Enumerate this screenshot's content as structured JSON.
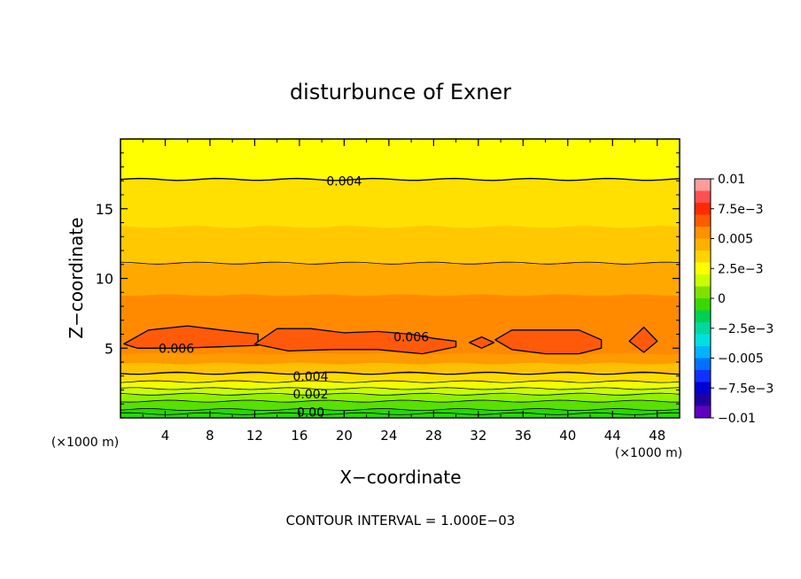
{
  "chart_data": {
    "type": "heatmap",
    "title": "disturbunce of Exner",
    "xlabel": "X−coordinate",
    "ylabel": "Z−coordinate",
    "x_unit": "(×1000 m)",
    "y_unit": "(×1000 m)",
    "xlim": [
      0,
      50
    ],
    "ylim": [
      0,
      20
    ],
    "x_ticks": [
      4,
      8,
      12,
      16,
      20,
      24,
      28,
      32,
      36,
      40,
      44,
      48
    ],
    "y_ticks": [
      5,
      10,
      15
    ],
    "footer": "CONTOUR INTERVAL = 1.000E−03",
    "colorbar": {
      "min": -0.01,
      "max": 0.01,
      "labels": [
        "0.01",
        "7.5e−3",
        "0.005",
        "2.5e−3",
        "0",
        "−2.5e−3",
        "−0.005",
        "−7.5e−3",
        "−0.01"
      ],
      "colors": [
        "#ff9c9c",
        "#ff5050",
        "#ff2a00",
        "#ff5a00",
        "#ff9000",
        "#ffb000",
        "#ffd400",
        "#ffff00",
        "#c8ff00",
        "#80e000",
        "#38d800",
        "#00d050",
        "#00d8a0",
        "#00e0e0",
        "#00b4ff",
        "#0070ff",
        "#1030ff",
        "#0000d0",
        "#2000a0",
        "#6000c0"
      ]
    },
    "contour_labels": [
      {
        "text": "0.004",
        "x": 20,
        "y": 17
      },
      {
        "text": "0.006",
        "x": 5,
        "y": 5
      },
      {
        "text": "0.006",
        "x": 26,
        "y": 5.8
      },
      {
        "text": "0.004",
        "x": 17,
        "y": 3
      },
      {
        "text": "0.002",
        "x": 17,
        "y": 1.7
      },
      {
        "text": "0.00",
        "x": 17,
        "y": 0.4
      }
    ],
    "bands": [
      {
        "z_top": 20,
        "value": 0.0035,
        "color": "#ffff00"
      },
      {
        "z_top": 17.1,
        "value": 0.0045,
        "color": "#ffe000"
      },
      {
        "z_top": 13.7,
        "value": 0.005,
        "color": "#ffc800"
      },
      {
        "z_top": 11.1,
        "value": 0.0055,
        "color": "#ffa800"
      },
      {
        "z_top": 8.8,
        "value": 0.006,
        "color": "#ff8a00"
      },
      {
        "z_top": 4.6,
        "value": 0.0055,
        "color": "#ff9a00"
      },
      {
        "z_top": 3.9,
        "value": 0.0045,
        "color": "#ffc000"
      },
      {
        "z_top": 3.2,
        "value": 0.004,
        "color": "#ffdc00"
      },
      {
        "z_top": 2.6,
        "value": 0.003,
        "color": "#f0ff00"
      },
      {
        "z_top": 2.1,
        "value": 0.0025,
        "color": "#c8ff00"
      },
      {
        "z_top": 1.7,
        "value": 0.002,
        "color": "#90f000"
      },
      {
        "z_top": 1.2,
        "value": 0.001,
        "color": "#58e000"
      },
      {
        "z_top": 0.6,
        "value": 0.0005,
        "color": "#28d800"
      }
    ],
    "peak_regions": [
      {
        "x": [
          0.3,
          2.5,
          6,
          9,
          12.3,
          12.3,
          9,
          5,
          1.5,
          0.3
        ],
        "y": [
          5.3,
          6.3,
          6.6,
          6.3,
          6.0,
          5.2,
          5.1,
          5.0,
          5.0,
          5.3
        ]
      },
      {
        "x": [
          12,
          14,
          17,
          20,
          23,
          26,
          28,
          30,
          30,
          27,
          23,
          19,
          15,
          12
        ],
        "y": [
          5.3,
          6.4,
          6.4,
          6.1,
          6.2,
          6.0,
          5.7,
          5.5,
          5.1,
          4.6,
          4.9,
          4.9,
          4.8,
          5.3
        ]
      },
      {
        "x": [
          31.2,
          32.3,
          33.4,
          32.3
        ],
        "y": [
          5.4,
          5.8,
          5.4,
          5.0
        ]
      },
      {
        "x": [
          33.5,
          35,
          38,
          41,
          43,
          43,
          41,
          38,
          35,
          33.5
        ],
        "y": [
          5.6,
          6.3,
          6.3,
          6.3,
          5.6,
          5.0,
          4.6,
          4.6,
          4.9,
          5.6
        ]
      },
      {
        "x": [
          45.5,
          46.8,
          48,
          46.8
        ],
        "y": [
          5.5,
          6.5,
          5.5,
          4.7
        ]
      }
    ]
  }
}
